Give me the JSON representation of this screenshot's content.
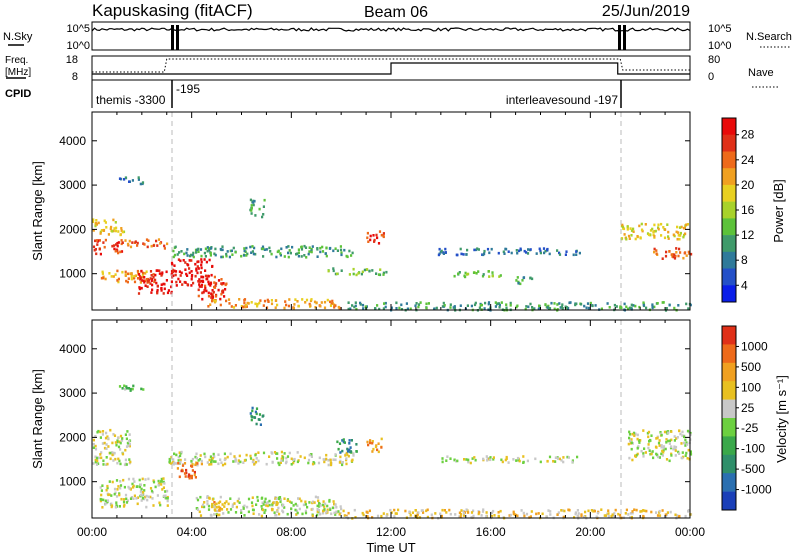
{
  "header": {
    "station": "Kapuskasing (fitACF)",
    "beam": "Beam 06",
    "date": "25/Jun/2019"
  },
  "panels": {
    "nsky": {
      "label": "N.Sky",
      "ticks": [
        "10^5",
        "10^0"
      ]
    },
    "nsearch": {
      "label": "N.Search",
      "ticks": [
        "10^5",
        "10^0"
      ]
    },
    "freq": {
      "label": "Freq.",
      "unit": "[MHz]",
      "ticks": [
        "18",
        "8"
      ]
    },
    "nave": {
      "label": "Nave",
      "ticks": [
        "80",
        "0"
      ]
    },
    "cpid": {
      "label": "CPID",
      "programs": [
        "themis -3300",
        "-195",
        "interleavesound -197"
      ]
    }
  },
  "chart_data": [
    {
      "type": "heatmap",
      "name": "power",
      "ylabel": "Slant Range [km]",
      "xlabel": "Time UT",
      "xlim": [
        0,
        24
      ],
      "ylim": [
        180,
        4650
      ],
      "yticks": [
        "1000",
        "2000",
        "3000",
        "4000"
      ],
      "xticks": [
        "00:00",
        "04:00",
        "08:00",
        "12:00",
        "16:00",
        "20:00",
        "00:00"
      ],
      "colorbar": {
        "label": "Power [dB]",
        "ticks": [
          "4",
          "8",
          "12",
          "16",
          "20",
          "24",
          "28"
        ],
        "colors": [
          "#0a1ee8",
          "#2450c8",
          "#2f7a9a",
          "#3f9a6a",
          "#5cc23a",
          "#a8d22a",
          "#e8d020",
          "#f0a020",
          "#ee6a1a",
          "#e03018",
          "#e80a0a"
        ]
      },
      "regions": [
        {
          "t0": 0.0,
          "t1": 1.3,
          "r0": 1900,
          "r1": 2250,
          "level": 6
        },
        {
          "t0": 0.0,
          "t1": 1.2,
          "r0": 1450,
          "r1": 1800,
          "level": 9
        },
        {
          "t0": 0.3,
          "t1": 2.5,
          "r0": 800,
          "r1": 1100,
          "level": 7
        },
        {
          "t0": 1.0,
          "t1": 2.1,
          "r0": 3050,
          "r1": 3200,
          "level": 2
        },
        {
          "t0": 1.3,
          "t1": 3.0,
          "r0": 1600,
          "r1": 1800,
          "level": 8
        },
        {
          "t0": 1.8,
          "t1": 3.2,
          "r0": 550,
          "r1": 1100,
          "level": 10
        },
        {
          "t0": 3.1,
          "t1": 4.8,
          "r0": 750,
          "r1": 1350,
          "level": 10
        },
        {
          "t0": 3.2,
          "t1": 10.5,
          "r0": 1400,
          "r1": 1650,
          "level": 3
        },
        {
          "t0": 4.2,
          "t1": 5.4,
          "r0": 450,
          "r1": 1000,
          "level": 9
        },
        {
          "t0": 4.5,
          "t1": 10.0,
          "r0": 250,
          "r1": 450,
          "level": 7
        },
        {
          "t0": 6.3,
          "t1": 6.9,
          "r0": 2300,
          "r1": 2700,
          "level": 3
        },
        {
          "t0": 9.4,
          "t1": 11.9,
          "r0": 1000,
          "r1": 1150,
          "level": 4
        },
        {
          "t0": 10.2,
          "t1": 24.0,
          "r0": 200,
          "r1": 380,
          "level": 3
        },
        {
          "t0": 11.0,
          "t1": 11.7,
          "r0": 1700,
          "r1": 2000,
          "level": 9
        },
        {
          "t0": 13.8,
          "t1": 19.6,
          "r0": 1450,
          "r1": 1600,
          "level": 2
        },
        {
          "t0": 14.5,
          "t1": 16.5,
          "r0": 950,
          "r1": 1100,
          "level": 4
        },
        {
          "t0": 16.8,
          "t1": 17.8,
          "r0": 800,
          "r1": 950,
          "level": 3
        },
        {
          "t0": 21.2,
          "t1": 24.0,
          "r0": 1800,
          "r1": 2150,
          "level": 6
        },
        {
          "t0": 22.5,
          "t1": 24.0,
          "r0": 1350,
          "r1": 1600,
          "level": 8
        }
      ]
    },
    {
      "type": "heatmap",
      "name": "velocity",
      "ylabel": "Slant Range [km]",
      "xlabel": "Time UT",
      "xlim": [
        0,
        24
      ],
      "ylim": [
        180,
        4650
      ],
      "yticks": [
        "1000",
        "2000",
        "3000",
        "4000"
      ],
      "xticks": [
        "00:00",
        "04:00",
        "08:00",
        "12:00",
        "16:00",
        "20:00",
        "00:00"
      ],
      "colorbar": {
        "label": "Velocity [m s⁻¹]",
        "ticks": [
          "1000",
          "500",
          "100",
          "25",
          "-25",
          "-100",
          "-500",
          "-1000"
        ],
        "colors": [
          "#1a3fb8",
          "#2a6fb0",
          "#2f8f6a",
          "#3aa84a",
          "#6cd040",
          "#c8c8c8",
          "#e8c020",
          "#f0a020",
          "#ee6a1a",
          "#e03018"
        ]
      },
      "regions": [
        {
          "t0": 0.0,
          "t1": 1.5,
          "r0": 1400,
          "r1": 2200,
          "level": 5
        },
        {
          "t0": 0.3,
          "t1": 3.0,
          "r0": 450,
          "r1": 1100,
          "level": 5
        },
        {
          "t0": 1.0,
          "t1": 2.1,
          "r0": 3050,
          "r1": 3200,
          "level": 4
        },
        {
          "t0": 3.0,
          "t1": 10.5,
          "r0": 1400,
          "r1": 1700,
          "level": 5
        },
        {
          "t0": 3.4,
          "t1": 4.4,
          "r0": 1100,
          "r1": 1450,
          "level": 8
        },
        {
          "t0": 4.0,
          "t1": 10.0,
          "r0": 250,
          "r1": 700,
          "level": 5
        },
        {
          "t0": 4.8,
          "t1": 5.2,
          "r0": 350,
          "r1": 600,
          "level": 7
        },
        {
          "t0": 6.3,
          "t1": 6.9,
          "r0": 2300,
          "r1": 2700,
          "level": 2
        },
        {
          "t0": 9.8,
          "t1": 10.6,
          "r0": 1650,
          "r1": 2000,
          "level": 2
        },
        {
          "t0": 10.0,
          "t1": 24.0,
          "r0": 200,
          "r1": 400,
          "level": 6
        },
        {
          "t0": 11.0,
          "t1": 11.7,
          "r0": 1700,
          "r1": 2000,
          "level": 7
        },
        {
          "t0": 14.0,
          "t1": 19.5,
          "r0": 1450,
          "r1": 1600,
          "level": 5
        },
        {
          "t0": 21.5,
          "t1": 24.0,
          "r0": 1500,
          "r1": 2200,
          "level": 5
        }
      ]
    }
  ]
}
